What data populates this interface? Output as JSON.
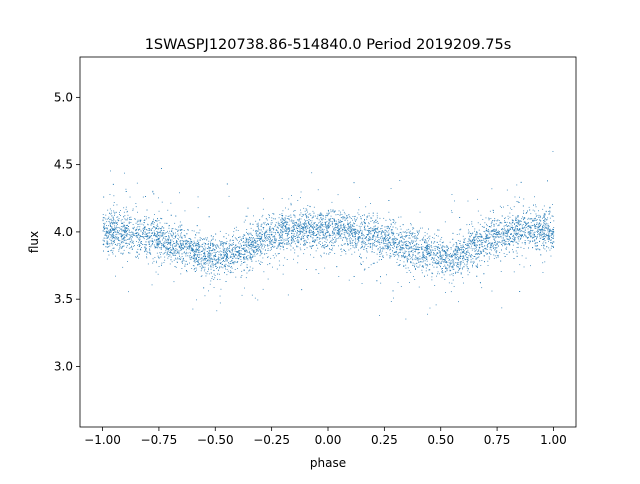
{
  "chart_data": {
    "type": "scatter",
    "title": "1SWASPJ120738.86-514840.0 Period 2019209.75s",
    "xlabel": "phase",
    "ylabel": "flux",
    "xlim": [
      -1.1,
      1.1
    ],
    "ylim": [
      2.55,
      5.3
    ],
    "xticks": [
      -1.0,
      -0.75,
      -0.5,
      -0.25,
      0.0,
      0.25,
      0.5,
      0.75,
      1.0
    ],
    "xtick_labels": [
      "−1.00",
      "−0.75",
      "−0.50",
      "−0.25",
      "0.00",
      "0.25",
      "0.50",
      "0.75",
      "1.00"
    ],
    "yticks": [
      3.0,
      3.5,
      4.0,
      4.5,
      5.0
    ],
    "ytick_labels": [
      "3.0",
      "3.5",
      "4.0",
      "4.5",
      "5.0"
    ],
    "grid": false,
    "marker_color": "#1f77b4",
    "series": [
      {
        "x": [
          -0.98,
          -0.95,
          -0.9,
          -0.85,
          -0.8,
          -0.75,
          -0.7,
          -0.65,
          -0.6,
          -0.55,
          -0.5,
          -0.45,
          -0.4,
          -0.35,
          -0.3,
          -0.25,
          -0.2,
          -0.15,
          -0.1,
          -0.05,
          0.0,
          0.05,
          0.1,
          0.15,
          0.2,
          0.25,
          0.3,
          0.35,
          0.4,
          0.45,
          0.5,
          0.55,
          0.6,
          0.65,
          0.7,
          0.75,
          0.8,
          0.85,
          0.9,
          0.95,
          1.0
        ],
        "y": [
          4.0,
          4.02,
          4.0,
          3.99,
          3.97,
          3.95,
          3.92,
          3.9,
          3.87,
          3.84,
          3.82,
          3.82,
          3.85,
          3.9,
          3.95,
          3.98,
          4.0,
          4.02,
          4.03,
          4.02,
          4.0,
          4.02,
          4.0,
          3.99,
          3.97,
          3.95,
          3.92,
          3.9,
          3.87,
          3.84,
          3.82,
          3.82,
          3.85,
          3.9,
          3.95,
          3.98,
          4.0,
          4.02,
          4.03,
          4.02,
          4.0
        ]
      }
    ]
  }
}
